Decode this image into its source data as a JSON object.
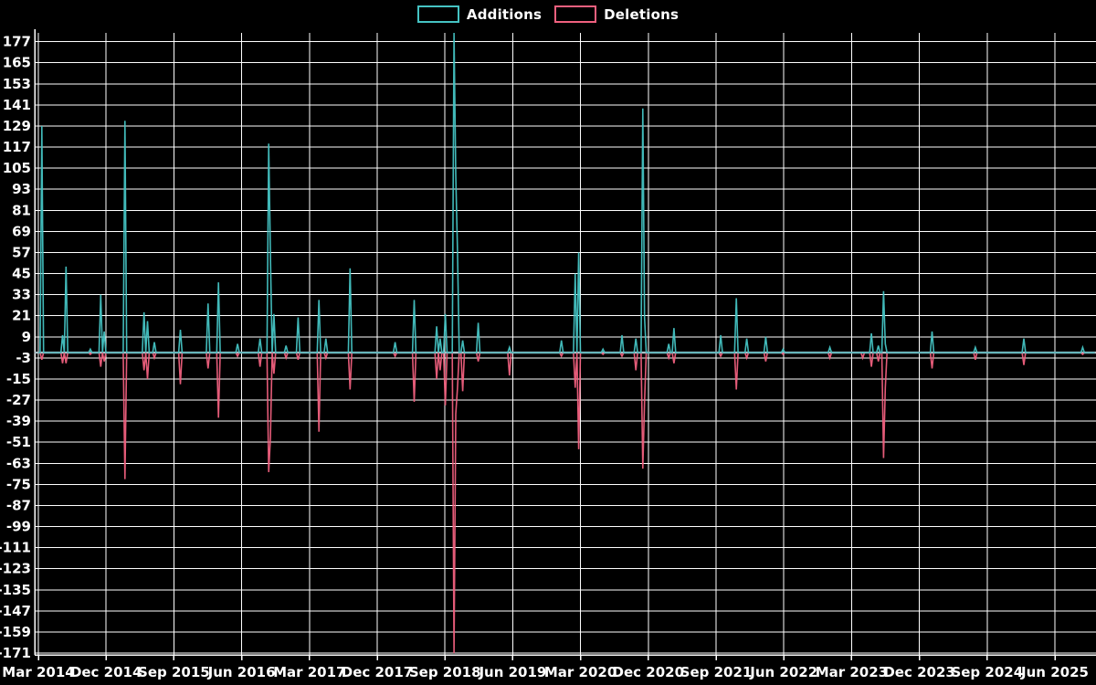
{
  "legend": {
    "items": [
      {
        "label": "Additions",
        "color": "#45c3c3"
      },
      {
        "label": "Deletions",
        "color": "#f0607e"
      }
    ]
  },
  "colors": {
    "background": "#000000",
    "grid": "#ffffff",
    "axis": "#ffffff",
    "zero_line": "#a9bfc6",
    "tick_text": "#ffffff",
    "additions": "#45c3c3",
    "deletions": "#f0607e"
  },
  "chart_data": {
    "type": "line",
    "title": "",
    "xlabel": "",
    "ylabel": "",
    "legend_position": "top-center",
    "grid": true,
    "y_ticks": [
      177,
      165,
      153,
      141,
      129,
      117,
      105,
      93,
      81,
      69,
      57,
      45,
      33,
      21,
      9,
      -3,
      -15,
      -27,
      -39,
      -51,
      -63,
      -75,
      -87,
      -99,
      -111,
      -123,
      -135,
      -147,
      -159,
      -171
    ],
    "ylim": [
      -172,
      182
    ],
    "x_tick_labels": [
      "Mar 2014",
      "Dec 2014",
      "Sep 2015",
      "Jun 2016",
      "Mar 2017",
      "Dec 2017",
      "Sep 2018",
      "Jun 2019",
      "Mar 2020",
      "Dec 2020",
      "Sep 2021",
      "Jun 2022",
      "Mar 2023",
      "Dec 2023",
      "Sep 2024",
      "Jun 2025"
    ],
    "weeks_per_xtick": 39.13,
    "weeks_total": 611,
    "series_names": [
      "Additions",
      "Deletions"
    ],
    "note_events_format": "week_index, additions_value, deletions_value (weeks not listed are 0,0)",
    "events": [
      [
        2,
        129,
        -4
      ],
      [
        14,
        10,
        -6
      ],
      [
        16,
        49,
        -6
      ],
      [
        30,
        2,
        -1
      ],
      [
        36,
        33,
        -8
      ],
      [
        38,
        12,
        -5
      ],
      [
        50,
        132,
        -72
      ],
      [
        61,
        23,
        -10
      ],
      [
        63,
        18,
        -15
      ],
      [
        67,
        6,
        -3
      ],
      [
        82,
        13,
        -18
      ],
      [
        98,
        28,
        -9
      ],
      [
        104,
        40,
        -37
      ],
      [
        115,
        5,
        -2
      ],
      [
        128,
        8,
        -8
      ],
      [
        133,
        119,
        -68
      ],
      [
        134,
        55,
        -48
      ],
      [
        136,
        22,
        -12
      ],
      [
        143,
        4,
        -3
      ],
      [
        150,
        20,
        -4
      ],
      [
        162,
        30,
        -45
      ],
      [
        166,
        8,
        -3
      ],
      [
        180,
        48,
        -21
      ],
      [
        206,
        6,
        -2
      ],
      [
        217,
        30,
        -28
      ],
      [
        230,
        15,
        -15
      ],
      [
        232,
        8,
        -10
      ],
      [
        235,
        22,
        -30
      ],
      [
        240,
        182,
        -171
      ],
      [
        241,
        101,
        -35
      ],
      [
        242,
        58,
        -20
      ],
      [
        245,
        7,
        -22
      ],
      [
        254,
        17,
        -5
      ],
      [
        272,
        3,
        -13
      ],
      [
        302,
        7,
        -2
      ],
      [
        310,
        45,
        -20
      ],
      [
        312,
        57,
        -55
      ],
      [
        326,
        2,
        -1
      ],
      [
        337,
        10,
        -2
      ],
      [
        345,
        8,
        -10
      ],
      [
        349,
        139,
        -66
      ],
      [
        350,
        20,
        -28
      ],
      [
        364,
        5,
        -3
      ],
      [
        367,
        14,
        -6
      ],
      [
        394,
        10,
        -2
      ],
      [
        403,
        31,
        -21
      ],
      [
        409,
        8,
        -3
      ],
      [
        420,
        9,
        -5
      ],
      [
        430,
        2,
        -1
      ],
      [
        457,
        3,
        -3
      ],
      [
        476,
        0,
        -3
      ],
      [
        481,
        11,
        -8
      ],
      [
        485,
        4,
        -5
      ],
      [
        488,
        35,
        -60
      ],
      [
        489,
        5,
        -20
      ],
      [
        516,
        12,
        -9
      ],
      [
        541,
        3,
        -4
      ],
      [
        569,
        8,
        -7
      ],
      [
        603,
        3,
        -1
      ]
    ]
  }
}
